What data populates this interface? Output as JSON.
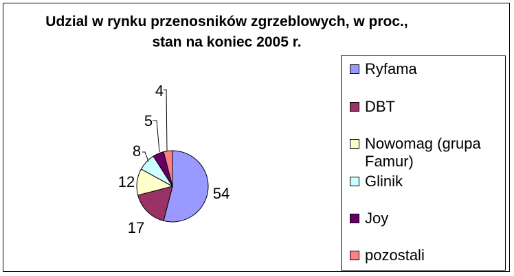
{
  "chart_data": {
    "type": "pie",
    "title": "Udzial w rynku przenosników zgrzeblowych, w proc., stan na koniec 2005 r.",
    "categories": [
      "Ryfama",
      "DBT",
      "Nowomag (grupa Famur)",
      "Glinik",
      "Joy",
      "pozostali"
    ],
    "values": [
      54,
      17,
      12,
      8,
      5,
      4
    ],
    "data_labels": [
      "54",
      "17",
      "12",
      "8",
      "5",
      "4"
    ],
    "colors": [
      "#9999ff",
      "#993366",
      "#ffffcc",
      "#ccffff",
      "#660066",
      "#ff8080"
    ],
    "legend_placement": "right"
  }
}
